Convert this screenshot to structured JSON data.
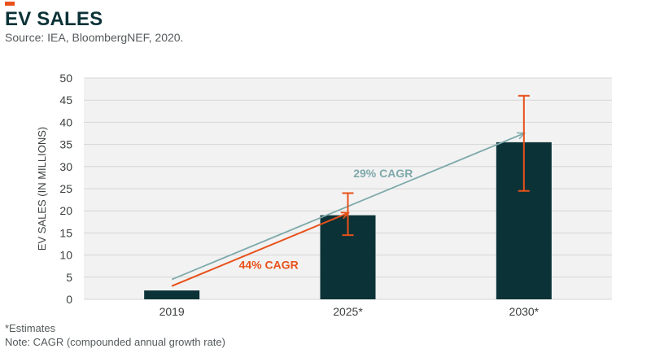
{
  "header": {
    "title": "EV SALES",
    "source": "Source: IEA, BloombergNEF, 2020."
  },
  "footnotes": {
    "estimates": "*Estimates",
    "note": "Note: CAGR (compounded annual growth rate)"
  },
  "colors": {
    "accent": "#e8511a",
    "bar": "#0b3237",
    "teal_arrow": "#7fa9ab",
    "plot_bg": "#f2f2f2",
    "grid": "#d6d6d6"
  },
  "chart_data": {
    "type": "bar",
    "ylabel": "EV SALES (IN MILLIONS)",
    "xlabel": "",
    "ylim": [
      0,
      50
    ],
    "yticks": [
      0,
      5,
      10,
      15,
      20,
      25,
      30,
      35,
      40,
      45,
      50
    ],
    "grid": true,
    "categories": [
      "2019",
      "2025*",
      "2030*"
    ],
    "values": [
      2,
      19,
      35.5
    ],
    "error_bars": [
      null,
      {
        "low": 14.5,
        "high": 24
      },
      {
        "low": 24.5,
        "high": 46
      }
    ],
    "annotations": [
      {
        "label": "44% CAGR",
        "color": "#e8511a",
        "from": {
          "x": "2019",
          "y": 3
        },
        "to": {
          "x": "2025*",
          "y": 19.5
        }
      },
      {
        "label": "29% CAGR",
        "color": "#7fa9ab",
        "from": {
          "x": "2019",
          "y": 4.5
        },
        "to": {
          "x": "2030*",
          "y": 37.5
        }
      }
    ]
  }
}
